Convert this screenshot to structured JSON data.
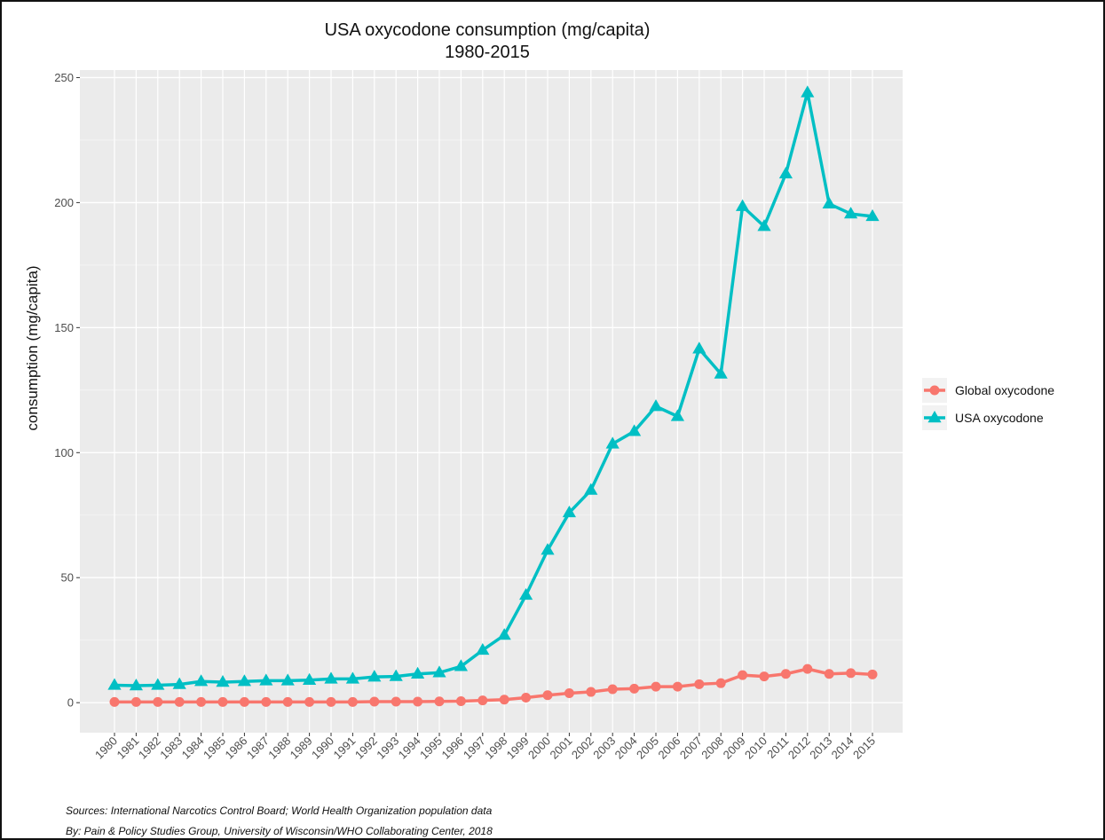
{
  "chart_data": {
    "type": "line",
    "title": "USA oxycodone consumption (mg/capita)",
    "subtitle": "1980-2015",
    "xlabel": "",
    "ylabel": "consumption (mg/capita)",
    "ylim": [
      -12,
      253
    ],
    "yticks": [
      0,
      50,
      100,
      150,
      200,
      250
    ],
    "grid": true,
    "legend_position": "right",
    "categories": [
      "1980",
      "1981",
      "1982",
      "1983",
      "1984",
      "1985",
      "1986",
      "1987",
      "1988",
      "1989",
      "1990",
      "1991",
      "1992",
      "1993",
      "1994",
      "1995",
      "1996",
      "1997",
      "1998",
      "1999",
      "2000",
      "2001",
      "2002",
      "2003",
      "2004",
      "2005",
      "2006",
      "2007",
      "2008",
      "2009",
      "2010",
      "2011",
      "2012",
      "2013",
      "2014",
      "2015"
    ],
    "series": [
      {
        "name": "Global oxycodone",
        "color": "#F8766D",
        "marker": "circle",
        "values": [
          0.3,
          0.3,
          0.3,
          0.3,
          0.3,
          0.3,
          0.3,
          0.3,
          0.3,
          0.3,
          0.3,
          0.3,
          0.4,
          0.4,
          0.4,
          0.5,
          0.6,
          0.9,
          1.2,
          2.0,
          3.0,
          3.8,
          4.3,
          5.4,
          5.6,
          6.4,
          6.4,
          7.4,
          7.8,
          11.0,
          10.5,
          11.5,
          13.5,
          11.5,
          11.8,
          11.3
        ]
      },
      {
        "name": "USA oxycodone",
        "color": "#00BFC4",
        "marker": "triangle",
        "values": [
          7.0,
          6.8,
          7.0,
          7.3,
          8.5,
          8.2,
          8.5,
          8.8,
          8.8,
          9.0,
          9.5,
          9.5,
          10.3,
          10.5,
          11.5,
          12.0,
          14.5,
          21.0,
          27.0,
          43.0,
          61.0,
          76.0,
          85.0,
          103.5,
          108.5,
          118.5,
          114.5,
          141.5,
          131.5,
          198.5,
          190.5,
          211.5,
          244.0,
          199.5,
          195.5,
          194.5
        ]
      }
    ]
  },
  "footer": {
    "sources": "Sources: International Narcotics Control Board; World Health Organization population data",
    "by": "By: Pain & Policy Studies Group, University of Wisconsin/WHO Collaborating Center,  2018"
  }
}
